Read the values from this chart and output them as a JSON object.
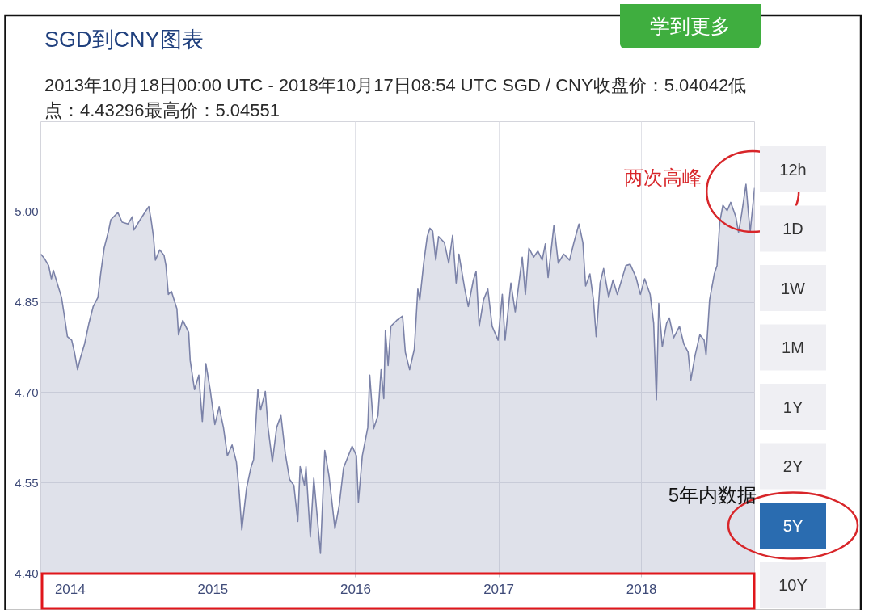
{
  "chart_data": {
    "type": "area",
    "title": "SGD到CNY图表",
    "subtitle": "2013年10月18日00:00 UTC - 2018年10月17日08:54 UTC SGD / CNY收盘价：5.04042低点：4.43296最高价：5.04551",
    "x": [
      "2013-10-18",
      "2013-10-27",
      "2013-11-07",
      "2013-11-14",
      "2013-11-19",
      "2013-12-10",
      "2013-12-18",
      "2013-12-25",
      "2014-01-05",
      "2014-01-12",
      "2014-01-20",
      "2014-01-27",
      "2014-02-07",
      "2014-02-18",
      "2014-03-01",
      "2014-03-13",
      "2014-03-20",
      "2014-03-29",
      "2014-04-09",
      "2014-04-15",
      "2014-05-03",
      "2014-05-14",
      "2014-05-29",
      "2014-06-09",
      "2014-06-13",
      "2014-06-27",
      "2014-07-09",
      "2014-07-21",
      "2014-07-27",
      "2014-08-02",
      "2014-08-07",
      "2014-08-18",
      "2014-08-29",
      "2014-09-03",
      "2014-09-09",
      "2014-09-17",
      "2014-10-01",
      "2014-10-05",
      "2014-10-16",
      "2014-10-31",
      "2014-11-04",
      "2014-11-15",
      "2014-11-26",
      "2014-12-05",
      "2014-12-14",
      "2014-12-25",
      "2015-01-06",
      "2015-01-17",
      "2015-01-28",
      "2015-02-07",
      "2015-02-19",
      "2015-03-02",
      "2015-03-09",
      "2015-03-16",
      "2015-03-28",
      "2015-04-08",
      "2015-04-15",
      "2015-04-26",
      "2015-05-03",
      "2015-05-15",
      "2015-05-22",
      "2015-06-02",
      "2015-06-13",
      "2015-06-24",
      "2015-07-05",
      "2015-07-16",
      "2015-07-27",
      "2015-08-06",
      "2015-08-12",
      "2015-08-23",
      "2015-08-27",
      "2015-09-07",
      "2015-09-16",
      "2015-10-03",
      "2015-10-14",
      "2015-10-25",
      "2015-11-09",
      "2015-11-20",
      "2015-12-01",
      "2015-12-23",
      "2016-01-03",
      "2016-01-08",
      "2016-01-18",
      "2016-02-01",
      "2016-02-06",
      "2016-02-16",
      "2016-02-27",
      "2016-03-06",
      "2016-03-13",
      "2016-03-17",
      "2016-03-24",
      "2016-03-31",
      "2016-04-15",
      "2016-04-30",
      "2016-05-07",
      "2016-05-18",
      "2016-05-30",
      "2016-06-08",
      "2016-06-13",
      "2016-06-23",
      "2016-07-02",
      "2016-07-09",
      "2016-07-16",
      "2016-07-24",
      "2016-07-31",
      "2016-08-15",
      "2016-08-26",
      "2016-09-05",
      "2016-09-14",
      "2016-09-21",
      "2016-10-06",
      "2016-10-15",
      "2016-10-28",
      "2016-11-04",
      "2016-11-12",
      "2016-11-23",
      "2016-12-04",
      "2016-12-15",
      "2016-12-30",
      "2017-01-10",
      "2017-01-17",
      "2017-02-01",
      "2017-02-12",
      "2017-03-02",
      "2017-03-10",
      "2017-03-19",
      "2017-03-31",
      "2017-04-11",
      "2017-04-22",
      "2017-04-30",
      "2017-05-07",
      "2017-05-22",
      "2017-06-02",
      "2017-06-16",
      "2017-07-01",
      "2017-07-12",
      "2017-07-25",
      "2017-08-04",
      "2017-08-11",
      "2017-08-22",
      "2017-08-31",
      "2017-09-07",
      "2017-09-17",
      "2017-09-26",
      "2017-10-09",
      "2017-10-20",
      "2017-10-31",
      "2017-11-22",
      "2017-12-03",
      "2017-12-18",
      "2017-12-29",
      "2018-01-09",
      "2018-01-23",
      "2018-02-01",
      "2018-02-08",
      "2018-02-14",
      "2018-02-23",
      "2018-03-06",
      "2018-03-13",
      "2018-03-24",
      "2018-04-08",
      "2018-04-19",
      "2018-04-30",
      "2018-05-07",
      "2018-05-18",
      "2018-05-30",
      "2018-06-10",
      "2018-06-15",
      "2018-06-24",
      "2018-07-06",
      "2018-07-13",
      "2018-07-20",
      "2018-07-28",
      "2018-08-08",
      "2018-08-17",
      "2018-08-30",
      "2018-09-06",
      "2018-09-14",
      "2018-09-25",
      "2018-10-02",
      "2018-10-06",
      "2018-10-17"
    ],
    "values": [
      4.93,
      4.923,
      4.911,
      4.889,
      4.903,
      4.858,
      4.824,
      4.793,
      4.787,
      4.767,
      4.738,
      4.757,
      4.781,
      4.815,
      4.843,
      4.858,
      4.897,
      4.94,
      4.968,
      4.987,
      4.999,
      4.983,
      4.98,
      4.992,
      4.97,
      4.985,
      4.997,
      5.009,
      4.987,
      4.959,
      4.92,
      4.937,
      4.928,
      4.911,
      4.863,
      4.868,
      4.839,
      4.796,
      4.82,
      4.8,
      4.753,
      4.705,
      4.729,
      4.652,
      4.748,
      4.705,
      4.647,
      4.676,
      4.642,
      4.595,
      4.613,
      4.585,
      4.537,
      4.472,
      4.541,
      4.575,
      4.589,
      4.705,
      4.671,
      4.702,
      4.642,
      4.585,
      4.642,
      4.662,
      4.599,
      4.556,
      4.546,
      4.486,
      4.577,
      4.546,
      4.577,
      4.46,
      4.558,
      4.433,
      4.604,
      4.561,
      4.474,
      4.513,
      4.575,
      4.611,
      4.595,
      4.518,
      4.595,
      4.642,
      4.729,
      4.64,
      4.662,
      4.738,
      4.69,
      4.803,
      4.745,
      4.81,
      4.82,
      4.827,
      4.767,
      4.738,
      4.772,
      4.872,
      4.854,
      4.915,
      4.959,
      4.973,
      4.968,
      4.92,
      4.959,
      4.949,
      4.915,
      4.961,
      4.882,
      4.93,
      4.872,
      4.843,
      4.887,
      4.901,
      4.81,
      4.854,
      4.872,
      4.81,
      4.787,
      4.863,
      4.787,
      4.882,
      4.834,
      4.925,
      4.863,
      4.94,
      4.925,
      4.935,
      4.92,
      4.947,
      4.891,
      4.978,
      4.915,
      4.93,
      4.92,
      4.949,
      4.98,
      4.949,
      4.877,
      4.897,
      4.854,
      4.793,
      4.882,
      4.906,
      4.858,
      4.887,
      4.863,
      4.911,
      4.913,
      4.891,
      4.863,
      4.889,
      4.863,
      4.815,
      4.688,
      4.848,
      4.776,
      4.815,
      4.824,
      4.791,
      4.81,
      4.781,
      4.767,
      4.721,
      4.762,
      4.796,
      4.787,
      4.762,
      4.854,
      4.897,
      4.911,
      4.983,
      5.011,
      5.002,
      5.016,
      4.992,
      4.966,
      4.997,
      5.046,
      4.992,
      4.968,
      5.04
    ],
    "color": "#7b82a8",
    "xlim": [
      "2013-10-18",
      "2018-10-17"
    ],
    "ylim": [
      4.4,
      5.15
    ],
    "xticks": [
      {
        "value": "2014-01-01",
        "label": "2014"
      },
      {
        "value": "2015-01-01",
        "label": "2015"
      },
      {
        "value": "2016-01-01",
        "label": "2016"
      },
      {
        "value": "2017-01-01",
        "label": "2017"
      },
      {
        "value": "2018-01-01",
        "label": "2018"
      }
    ],
    "yticks": [
      {
        "value": 4.4,
        "label": "4.40"
      },
      {
        "value": 4.55,
        "label": "4.55"
      },
      {
        "value": 4.7,
        "label": "4.70"
      },
      {
        "value": 4.85,
        "label": "4.85"
      },
      {
        "value": 5.0,
        "label": "5.00"
      }
    ],
    "grid": true,
    "annotations": [
      {
        "text": "两次高峰",
        "x": "2018-10-03",
        "y": 5.04
      },
      "5年内数据",
      "学到更多",
      "12h",
      "1D",
      "1W",
      "1M",
      "1Y",
      "2Y",
      "5Y",
      "10Y"
    ]
  }
}
